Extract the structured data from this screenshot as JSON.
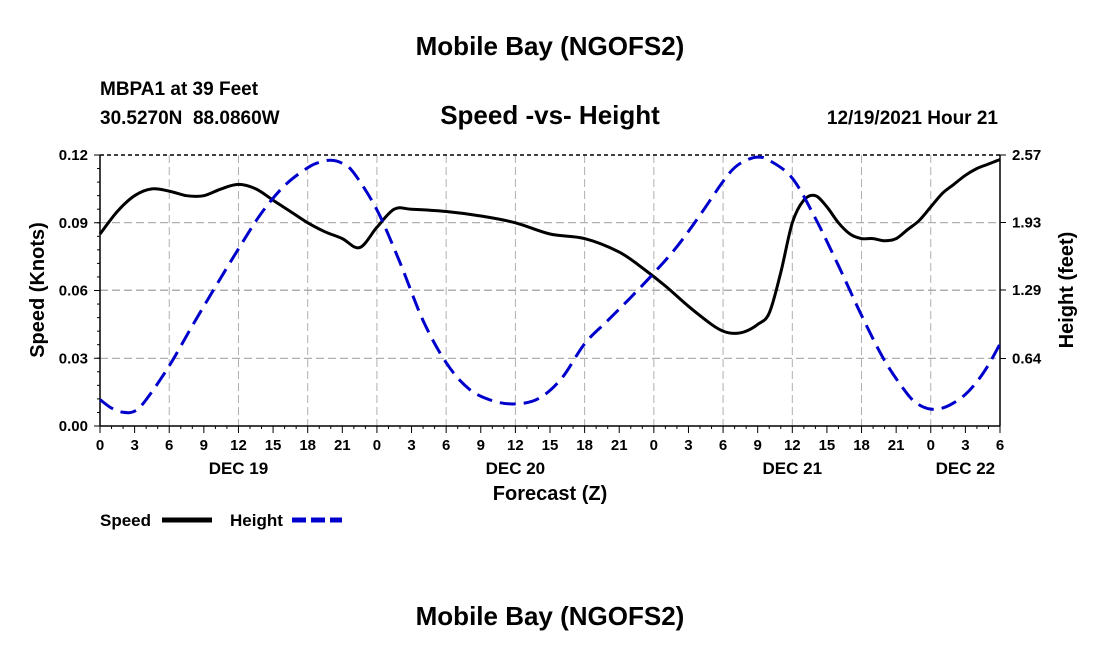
{
  "page_title": "Mobile Bay (NGOFS2)",
  "page_title_repeat": "Mobile Bay (NGOFS2)",
  "station": {
    "name_line": "MBPA1 at 39 Feet",
    "coords_line": "30.5270N  88.0860W"
  },
  "timestamp": "12/19/2021 Hour 21",
  "colors": {
    "speed": "#000000",
    "height": "#0000cc",
    "grid": "#b0b0b0"
  },
  "chart_data": {
    "type": "line",
    "title": "Speed -vs- Height",
    "xlabel": "Forecast (Z)",
    "ylabel": "Speed (Knots)",
    "y2label": "Height (feet)",
    "ylim": [
      0,
      0.12
    ],
    "y2lim": [
      0,
      2.57
    ],
    "xlim": [
      0,
      78
    ],
    "yticks": [
      "0.00",
      "0.03",
      "0.06",
      "0.09",
      "0.12"
    ],
    "y2ticks": [
      {
        "value": 0.64,
        "label": "0.64"
      },
      {
        "value": 1.29,
        "label": "1.29"
      },
      {
        "value": 1.93,
        "label": "1.93"
      },
      {
        "value": 2.57,
        "label": "2.57"
      }
    ],
    "xticks": [
      "0",
      "3",
      "6",
      "9",
      "12",
      "15",
      "18",
      "21",
      "0",
      "3",
      "6",
      "9",
      "12",
      "15",
      "18",
      "21",
      "0",
      "3",
      "6",
      "9",
      "12",
      "15",
      "18",
      "21",
      "0",
      "3",
      "6"
    ],
    "date_labels": [
      {
        "hour": 12,
        "label": "DEC 19"
      },
      {
        "hour": 36,
        "label": "DEC 20"
      },
      {
        "hour": 60,
        "label": "DEC 21"
      },
      {
        "hour": 75,
        "label": "DEC 22"
      }
    ],
    "series": [
      {
        "name": "Speed",
        "axis": "left",
        "style": "solid",
        "x": [
          0,
          1.5,
          3,
          4.5,
          6,
          7.5,
          9,
          10.5,
          12,
          13.5,
          15,
          16.5,
          18,
          19.5,
          21,
          22.5,
          24,
          25.5,
          27,
          30,
          33,
          36,
          39,
          42,
          45,
          47,
          49,
          51,
          53,
          54,
          55,
          56,
          57,
          58,
          59,
          60,
          61,
          62,
          63,
          64,
          65,
          66,
          67,
          68,
          69,
          70,
          71,
          72,
          73,
          74,
          75,
          76,
          77,
          78
        ],
        "values": [
          0.085,
          0.095,
          0.102,
          0.105,
          0.104,
          0.102,
          0.102,
          0.105,
          0.107,
          0.105,
          0.1,
          0.095,
          0.09,
          0.086,
          0.083,
          0.079,
          0.088,
          0.096,
          0.096,
          0.095,
          0.093,
          0.09,
          0.085,
          0.083,
          0.077,
          0.07,
          0.062,
          0.053,
          0.045,
          0.042,
          0.041,
          0.042,
          0.045,
          0.05,
          0.068,
          0.09,
          0.1,
          0.102,
          0.097,
          0.09,
          0.085,
          0.083,
          0.083,
          0.082,
          0.083,
          0.087,
          0.091,
          0.097,
          0.103,
          0.107,
          0.111,
          0.114,
          0.116,
          0.118
        ]
      },
      {
        "name": "Height",
        "axis": "right",
        "style": "dashed",
        "x": [
          0,
          1,
          2,
          3,
          4,
          6,
          8,
          10,
          12,
          14,
          16,
          18,
          19,
          20,
          21,
          22,
          24,
          26,
          28,
          30,
          32,
          34,
          36,
          38,
          40,
          42,
          44,
          46,
          48,
          50,
          52,
          54,
          55,
          56,
          57,
          58,
          60,
          62,
          64,
          66,
          68,
          70,
          71,
          72,
          73,
          74,
          75,
          76,
          77,
          78
        ],
        "values": [
          0.25,
          0.17,
          0.13,
          0.14,
          0.25,
          0.57,
          0.95,
          1.32,
          1.68,
          2.02,
          2.28,
          2.45,
          2.5,
          2.52,
          2.49,
          2.4,
          2.05,
          1.55,
          1.0,
          0.6,
          0.35,
          0.24,
          0.21,
          0.26,
          0.45,
          0.78,
          1.0,
          1.22,
          1.45,
          1.7,
          2.0,
          2.32,
          2.45,
          2.52,
          2.55,
          2.52,
          2.35,
          1.97,
          1.52,
          1.05,
          0.62,
          0.3,
          0.2,
          0.16,
          0.17,
          0.22,
          0.3,
          0.42,
          0.58,
          0.78
        ]
      }
    ],
    "legend": [
      "Speed",
      "Height"
    ]
  }
}
